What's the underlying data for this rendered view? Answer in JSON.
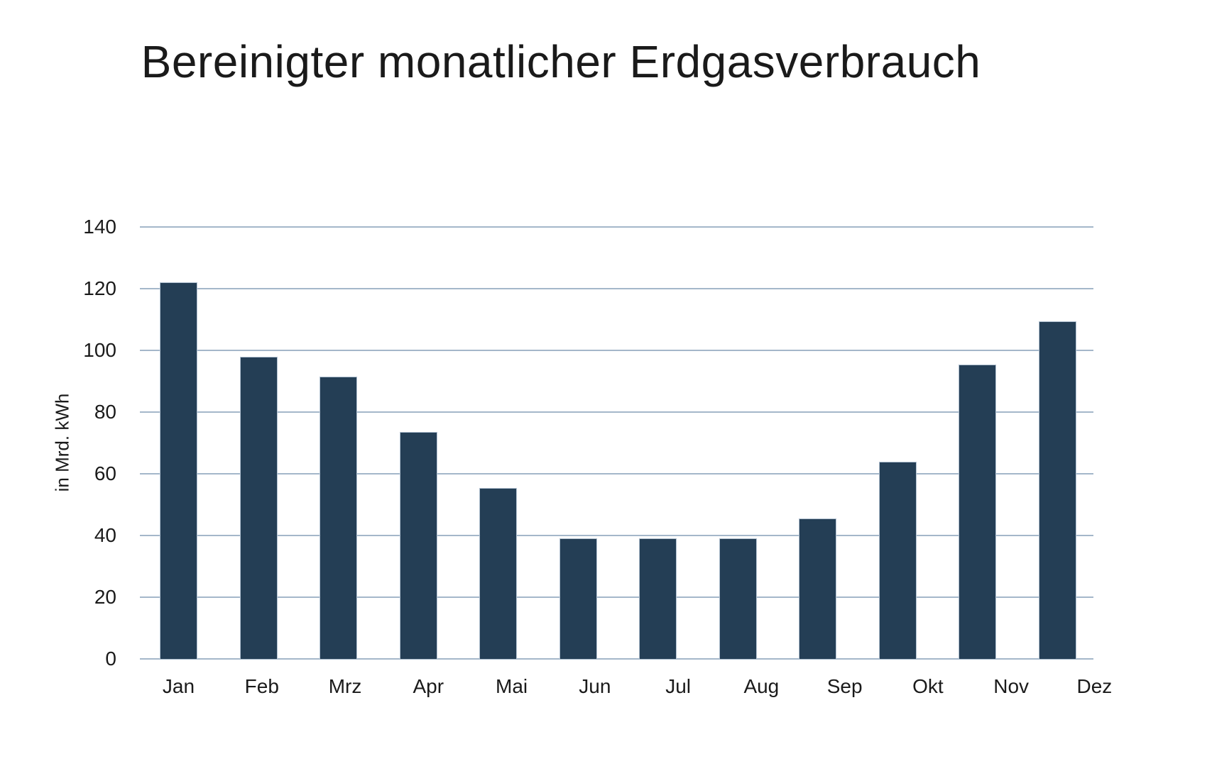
{
  "page": {
    "background": "#ffffff"
  },
  "chart_data": {
    "type": "bar",
    "title": "Bereinigter monatlicher Erdgasverbrauch",
    "xlabel": "",
    "ylabel": "in Mrd. kWh",
    "categories": [
      "Jan",
      "Feb",
      "Mrz",
      "Apr",
      "Mai",
      "Jun",
      "Jul",
      "Aug",
      "Sep",
      "Okt",
      "Nov",
      "Dez"
    ],
    "values": [
      122,
      98,
      91.5,
      73.5,
      55.5,
      39,
      39,
      39,
      45.5,
      64,
      95.5,
      109.5
    ],
    "ylim": [
      0,
      140
    ],
    "yticks": [
      0,
      20,
      40,
      60,
      80,
      100,
      120,
      140
    ],
    "grid": true,
    "legend": "none",
    "bar_color": "#243e55",
    "bar_border_color": "#b0c0d0",
    "gridline_color": "#a4b7ca",
    "text_color": "#1a1a1a",
    "background_color": "#ffffff"
  }
}
